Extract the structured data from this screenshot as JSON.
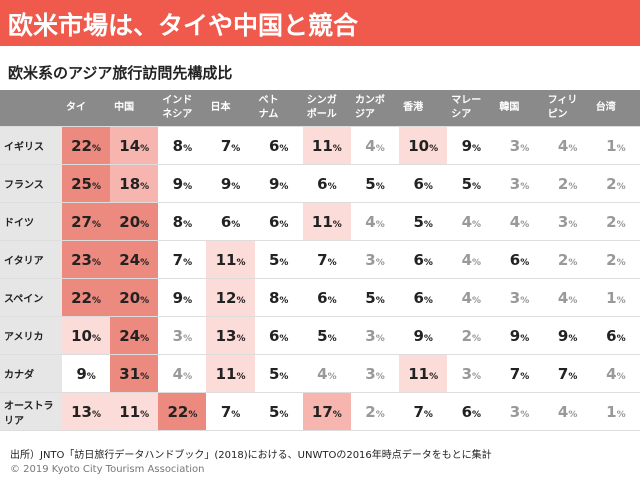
{
  "header": {
    "title": "欧米市場は、タイや中国と競合"
  },
  "subtitle": "欧米系のアジア旅行訪問先構成比",
  "table": {
    "columns": [
      "タイ",
      "中国",
      "インド\nネシア",
      "日本",
      "ベト\nナム",
      "シンガ\nポール",
      "カンボ\nジア",
      "香港",
      "マレー\nシア",
      "韓国",
      "フィリ\nピン",
      "台湾"
    ],
    "unit": "%",
    "highlight": [
      {
        "min": 20,
        "color": "#ec8a80"
      },
      {
        "min": 14,
        "color": "#f6b6af"
      },
      {
        "min": 10,
        "color": "#fcdcd8"
      }
    ],
    "dim_max": 4,
    "rows": [
      {
        "label": "イギリス",
        "values": [
          22,
          14,
          8,
          7,
          6,
          11,
          4,
          10,
          9,
          3,
          4,
          1
        ]
      },
      {
        "label": "フランス",
        "values": [
          25,
          18,
          9,
          9,
          9,
          6,
          5,
          6,
          5,
          3,
          2,
          2
        ]
      },
      {
        "label": "ドイツ",
        "values": [
          27,
          20,
          8,
          6,
          6,
          11,
          4,
          5,
          4,
          4,
          3,
          2
        ]
      },
      {
        "label": "イタリア",
        "values": [
          23,
          24,
          7,
          11,
          5,
          7,
          3,
          6,
          4,
          6,
          2,
          2
        ]
      },
      {
        "label": "スペイン",
        "values": [
          22,
          20,
          9,
          12,
          8,
          6,
          5,
          6,
          4,
          3,
          4,
          1
        ]
      },
      {
        "label": "アメリカ",
        "values": [
          10,
          24,
          3,
          13,
          6,
          5,
          3,
          9,
          2,
          9,
          9,
          6
        ]
      },
      {
        "label": "カナダ",
        "values": [
          9,
          31,
          4,
          11,
          5,
          4,
          3,
          11,
          3,
          7,
          7,
          4
        ]
      },
      {
        "label": "オーストラリア",
        "values": [
          13,
          11,
          22,
          7,
          5,
          17,
          2,
          7,
          6,
          3,
          4,
          1
        ]
      }
    ]
  },
  "footer": {
    "source": "出所）JNTO「訪日旅行データハンドブック」(2018)における、UNWTOの2016年時点データをもとに集計",
    "copyright": "© 2019 Kyoto City Tourism Association"
  }
}
